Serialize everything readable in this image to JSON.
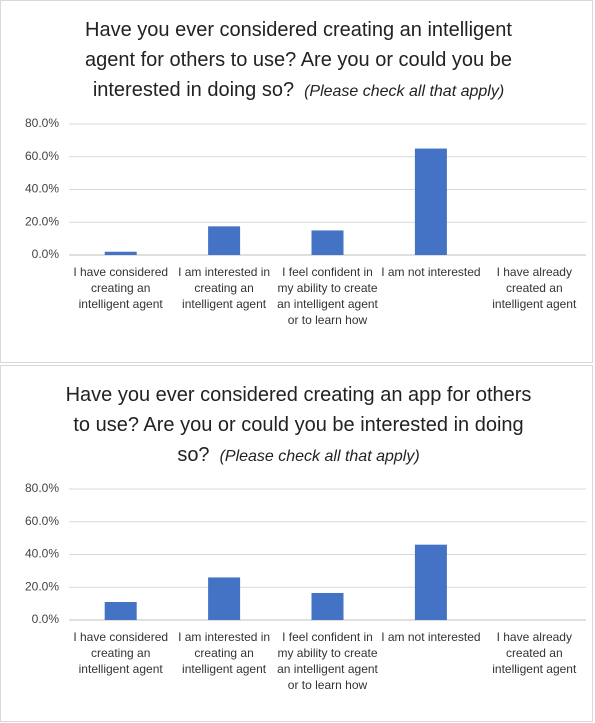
{
  "chart_data": [
    {
      "type": "bar",
      "title": "Have you ever considered creating an intelligent agent for others to use? Are you or could you be interested in doing so?",
      "title_note": "(Please check all that apply)",
      "categories": [
        "I have considered creating an intelligent agent",
        "I am interested in creating an intelligent agent",
        "I feel confident in my ability to create an intelligent agent or to learn how",
        "I am not interested",
        "I have already created an intelligent agent"
      ],
      "values": [
        2.0,
        17.5,
        15.0,
        65.0,
        0
      ],
      "color": "#4472c4",
      "ylim": [
        0,
        80
      ],
      "yticks": [
        {
          "value": 0,
          "label": "0.0%"
        },
        {
          "value": 20,
          "label": "20.0%"
        },
        {
          "value": 40,
          "label": "40.0%"
        },
        {
          "value": 60,
          "label": "60.0%"
        },
        {
          "value": 80,
          "label": "80.0%"
        }
      ],
      "grid": true
    },
    {
      "type": "bar",
      "title": "Have you ever considered creating an app for others to use? Are you or could you be interested in doing so?",
      "title_note": "(Please check all that apply)",
      "categories": [
        "I have considered creating an intelligent agent",
        "I am interested in creating an intelligent agent",
        "I feel confident in my ability to create an intelligent agent or to learn how",
        "I am not interested",
        "I have already created an intelligent agent"
      ],
      "values": [
        11.0,
        26.0,
        16.5,
        46.0,
        0
      ],
      "color": "#4472c4",
      "ylim": [
        0,
        80
      ],
      "yticks": [
        {
          "value": 0,
          "label": "0.0%"
        },
        {
          "value": 20,
          "label": "20.0%"
        },
        {
          "value": 40,
          "label": "40.0%"
        },
        {
          "value": 60,
          "label": "60.0%"
        },
        {
          "value": 80,
          "label": "80.0%"
        }
      ],
      "grid": true
    }
  ]
}
